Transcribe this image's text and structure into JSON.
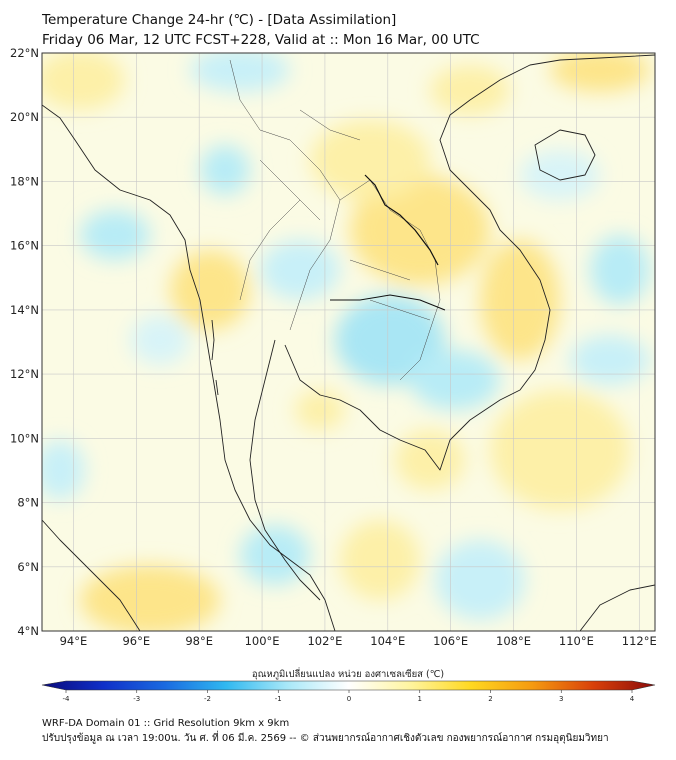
{
  "header": {
    "title": "Temperature Change 24-hr (℃) - [Data Assimilation]",
    "subtitle": "Friday 06 Mar, 12 UTC FCST+228, Valid at :: Mon 16 Mar, 00 UTC"
  },
  "map": {
    "lat_range": [
      4,
      22
    ],
    "lon_range": [
      93,
      112.5
    ],
    "lat_ticks": [
      "4°N",
      "6°N",
      "8°N",
      "10°N",
      "12°N",
      "14°N",
      "16°N",
      "18°N",
      "20°N",
      "22°N"
    ],
    "lon_ticks": [
      "94°E",
      "96°E",
      "98°E",
      "100°E",
      "102°E",
      "104°E",
      "106°E",
      "108°E",
      "110°E",
      "112°E"
    ]
  },
  "colorbar": {
    "label": "อุณหภูมิเปลี่ยนแปลง หน่วย องศาเซลเซียส (℃)",
    "min": -4,
    "max": 4,
    "ticks": [
      "-4",
      "-3",
      "-2",
      "-1",
      "0",
      "1",
      "2",
      "3",
      "4"
    ],
    "colors": [
      "#0a0a7a",
      "#1030c8",
      "#1a6ae0",
      "#30b8f0",
      "#a8e8f8",
      "#ffffff",
      "#fff5a0",
      "#ffd820",
      "#f59a10",
      "#d8400a",
      "#8a0a0a"
    ]
  },
  "footer": {
    "line1": "WRF-DA Domain 01 :: Grid Resolution 9km x 9km",
    "line2": "ปรับปรุงข้อมูล ณ เวลา 19:00น. วัน ศ. ที่ 06 มี.ค. 2569 -- © ส่วนพยากรณ์อากาศเชิงตัวเลข กองพยากรณ์อากาศ กรมอุตุนิยมวิทยา"
  }
}
